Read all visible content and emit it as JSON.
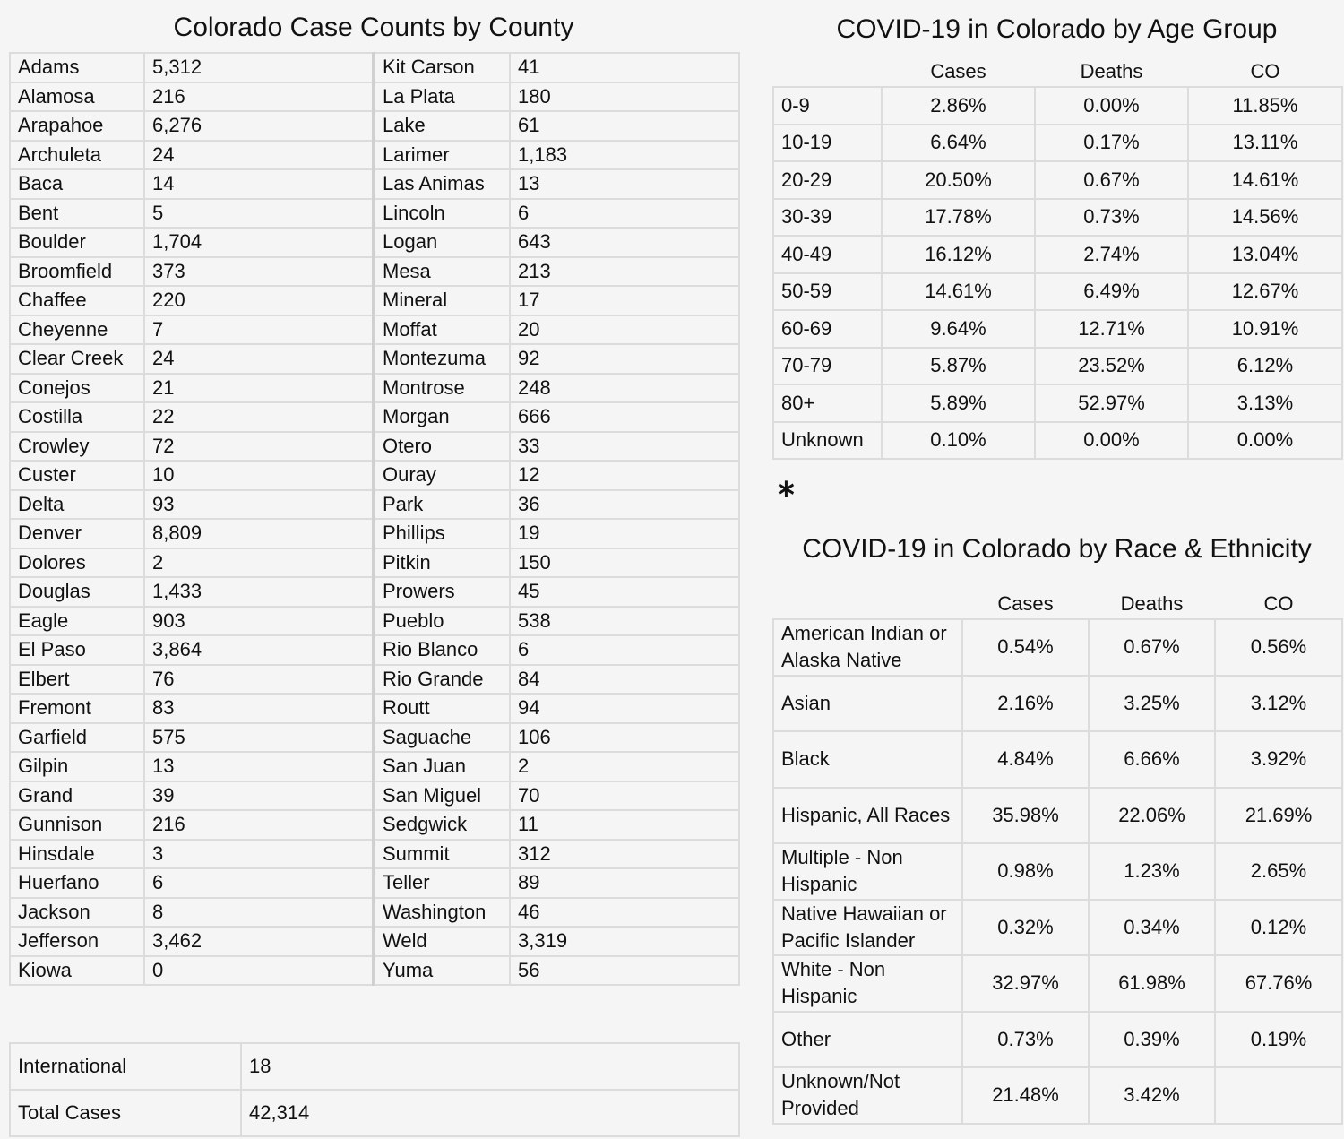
{
  "county_section": {
    "title": "Colorado Case Counts by County",
    "left": [
      [
        "Adams",
        "5,312"
      ],
      [
        "Alamosa",
        "216"
      ],
      [
        "Arapahoe",
        "6,276"
      ],
      [
        "Archuleta",
        "24"
      ],
      [
        "Baca",
        "14"
      ],
      [
        "Bent",
        "5"
      ],
      [
        "Boulder",
        "1,704"
      ],
      [
        "Broomfield",
        "373"
      ],
      [
        "Chaffee",
        "220"
      ],
      [
        "Cheyenne",
        "7"
      ],
      [
        "Clear Creek",
        "24"
      ],
      [
        "Conejos",
        "21"
      ],
      [
        "Costilla",
        "22"
      ],
      [
        "Crowley",
        "72"
      ],
      [
        "Custer",
        "10"
      ],
      [
        "Delta",
        "93"
      ],
      [
        "Denver",
        "8,809"
      ],
      [
        "Dolores",
        "2"
      ],
      [
        "Douglas",
        "1,433"
      ],
      [
        "Eagle",
        "903"
      ],
      [
        "El Paso",
        "3,864"
      ],
      [
        "Elbert",
        "76"
      ],
      [
        "Fremont",
        "83"
      ],
      [
        "Garfield",
        "575"
      ],
      [
        "Gilpin",
        "13"
      ],
      [
        "Grand",
        "39"
      ],
      [
        "Gunnison",
        "216"
      ],
      [
        "Hinsdale",
        "3"
      ],
      [
        "Huerfano",
        "6"
      ],
      [
        "Jackson",
        "8"
      ],
      [
        "Jefferson",
        "3,462"
      ],
      [
        "Kiowa",
        "0"
      ]
    ],
    "right": [
      [
        "Kit Carson",
        "41"
      ],
      [
        "La Plata",
        "180"
      ],
      [
        "Lake",
        "61"
      ],
      [
        "Larimer",
        "1,183"
      ],
      [
        "Las Animas",
        "13"
      ],
      [
        "Lincoln",
        "6"
      ],
      [
        "Logan",
        "643"
      ],
      [
        "Mesa",
        "213"
      ],
      [
        "Mineral",
        "17"
      ],
      [
        "Moffat",
        "20"
      ],
      [
        "Montezuma",
        "92"
      ],
      [
        "Montrose",
        "248"
      ],
      [
        "Morgan",
        "666"
      ],
      [
        "Otero",
        "33"
      ],
      [
        "Ouray",
        "12"
      ],
      [
        "Park",
        "36"
      ],
      [
        "Phillips",
        "19"
      ],
      [
        "Pitkin",
        "150"
      ],
      [
        "Prowers",
        "45"
      ],
      [
        "Pueblo",
        "538"
      ],
      [
        "Rio Blanco",
        "6"
      ],
      [
        "Rio Grande",
        "84"
      ],
      [
        "Routt",
        "94"
      ],
      [
        "Saguache",
        "106"
      ],
      [
        "San Juan",
        "2"
      ],
      [
        "San Miguel",
        "70"
      ],
      [
        "Sedgwick",
        "11"
      ],
      [
        "Summit",
        "312"
      ],
      [
        "Teller",
        "89"
      ],
      [
        "Washington",
        "46"
      ],
      [
        "Weld",
        "3,319"
      ],
      [
        "Yuma",
        "56"
      ]
    ],
    "international": {
      "label": "International",
      "value": "18"
    },
    "total": {
      "label": "Total Cases",
      "value": "42,314"
    }
  },
  "age_section": {
    "title": "COVID-19 in Colorado by Age Group",
    "headers": [
      "",
      "Cases",
      "Deaths",
      "CO"
    ],
    "rows": [
      [
        "0-9",
        "2.86%",
        "0.00%",
        "11.85%"
      ],
      [
        "10-19",
        "6.64%",
        "0.17%",
        "13.11%"
      ],
      [
        "20-29",
        "20.50%",
        "0.67%",
        "14.61%"
      ],
      [
        "30-39",
        "17.78%",
        "0.73%",
        "14.56%"
      ],
      [
        "40-49",
        "16.12%",
        "2.74%",
        "13.04%"
      ],
      [
        "50-59",
        "14.61%",
        "6.49%",
        "12.67%"
      ],
      [
        "60-69",
        "9.64%",
        "12.71%",
        "10.91%"
      ],
      [
        "70-79",
        "5.87%",
        "23.52%",
        "6.12%"
      ],
      [
        "80+",
        "5.89%",
        "52.97%",
        "3.13%"
      ],
      [
        "Unknown",
        "0.10%",
        "0.00%",
        "0.00%"
      ]
    ]
  },
  "asterisk": "*",
  "race_section": {
    "title": "COVID-19 in Colorado by Race & Ethnicity",
    "headers": [
      "",
      "Cases",
      "Deaths",
      "CO"
    ],
    "rows": [
      [
        "American Indian or Alaska Native",
        "0.54%",
        "0.67%",
        "0.56%"
      ],
      [
        "Asian",
        "2.16%",
        "3.25%",
        "3.12%"
      ],
      [
        "Black",
        "4.84%",
        "6.66%",
        "3.92%"
      ],
      [
        "Hispanic, All Races",
        "35.98%",
        "22.06%",
        "21.69%"
      ],
      [
        "Multiple - Non Hispanic",
        "0.98%",
        "1.23%",
        "2.65%"
      ],
      [
        "Native Hawaiian or Pacific Islander",
        "0.32%",
        "0.34%",
        "0.12%"
      ],
      [
        "White - Non Hispanic",
        "32.97%",
        "61.98%",
        "67.76%"
      ],
      [
        "Other",
        "0.73%",
        "0.39%",
        "0.19%"
      ],
      [
        "Unknown/Not Provided",
        "21.48%",
        "3.42%",
        ""
      ]
    ]
  }
}
